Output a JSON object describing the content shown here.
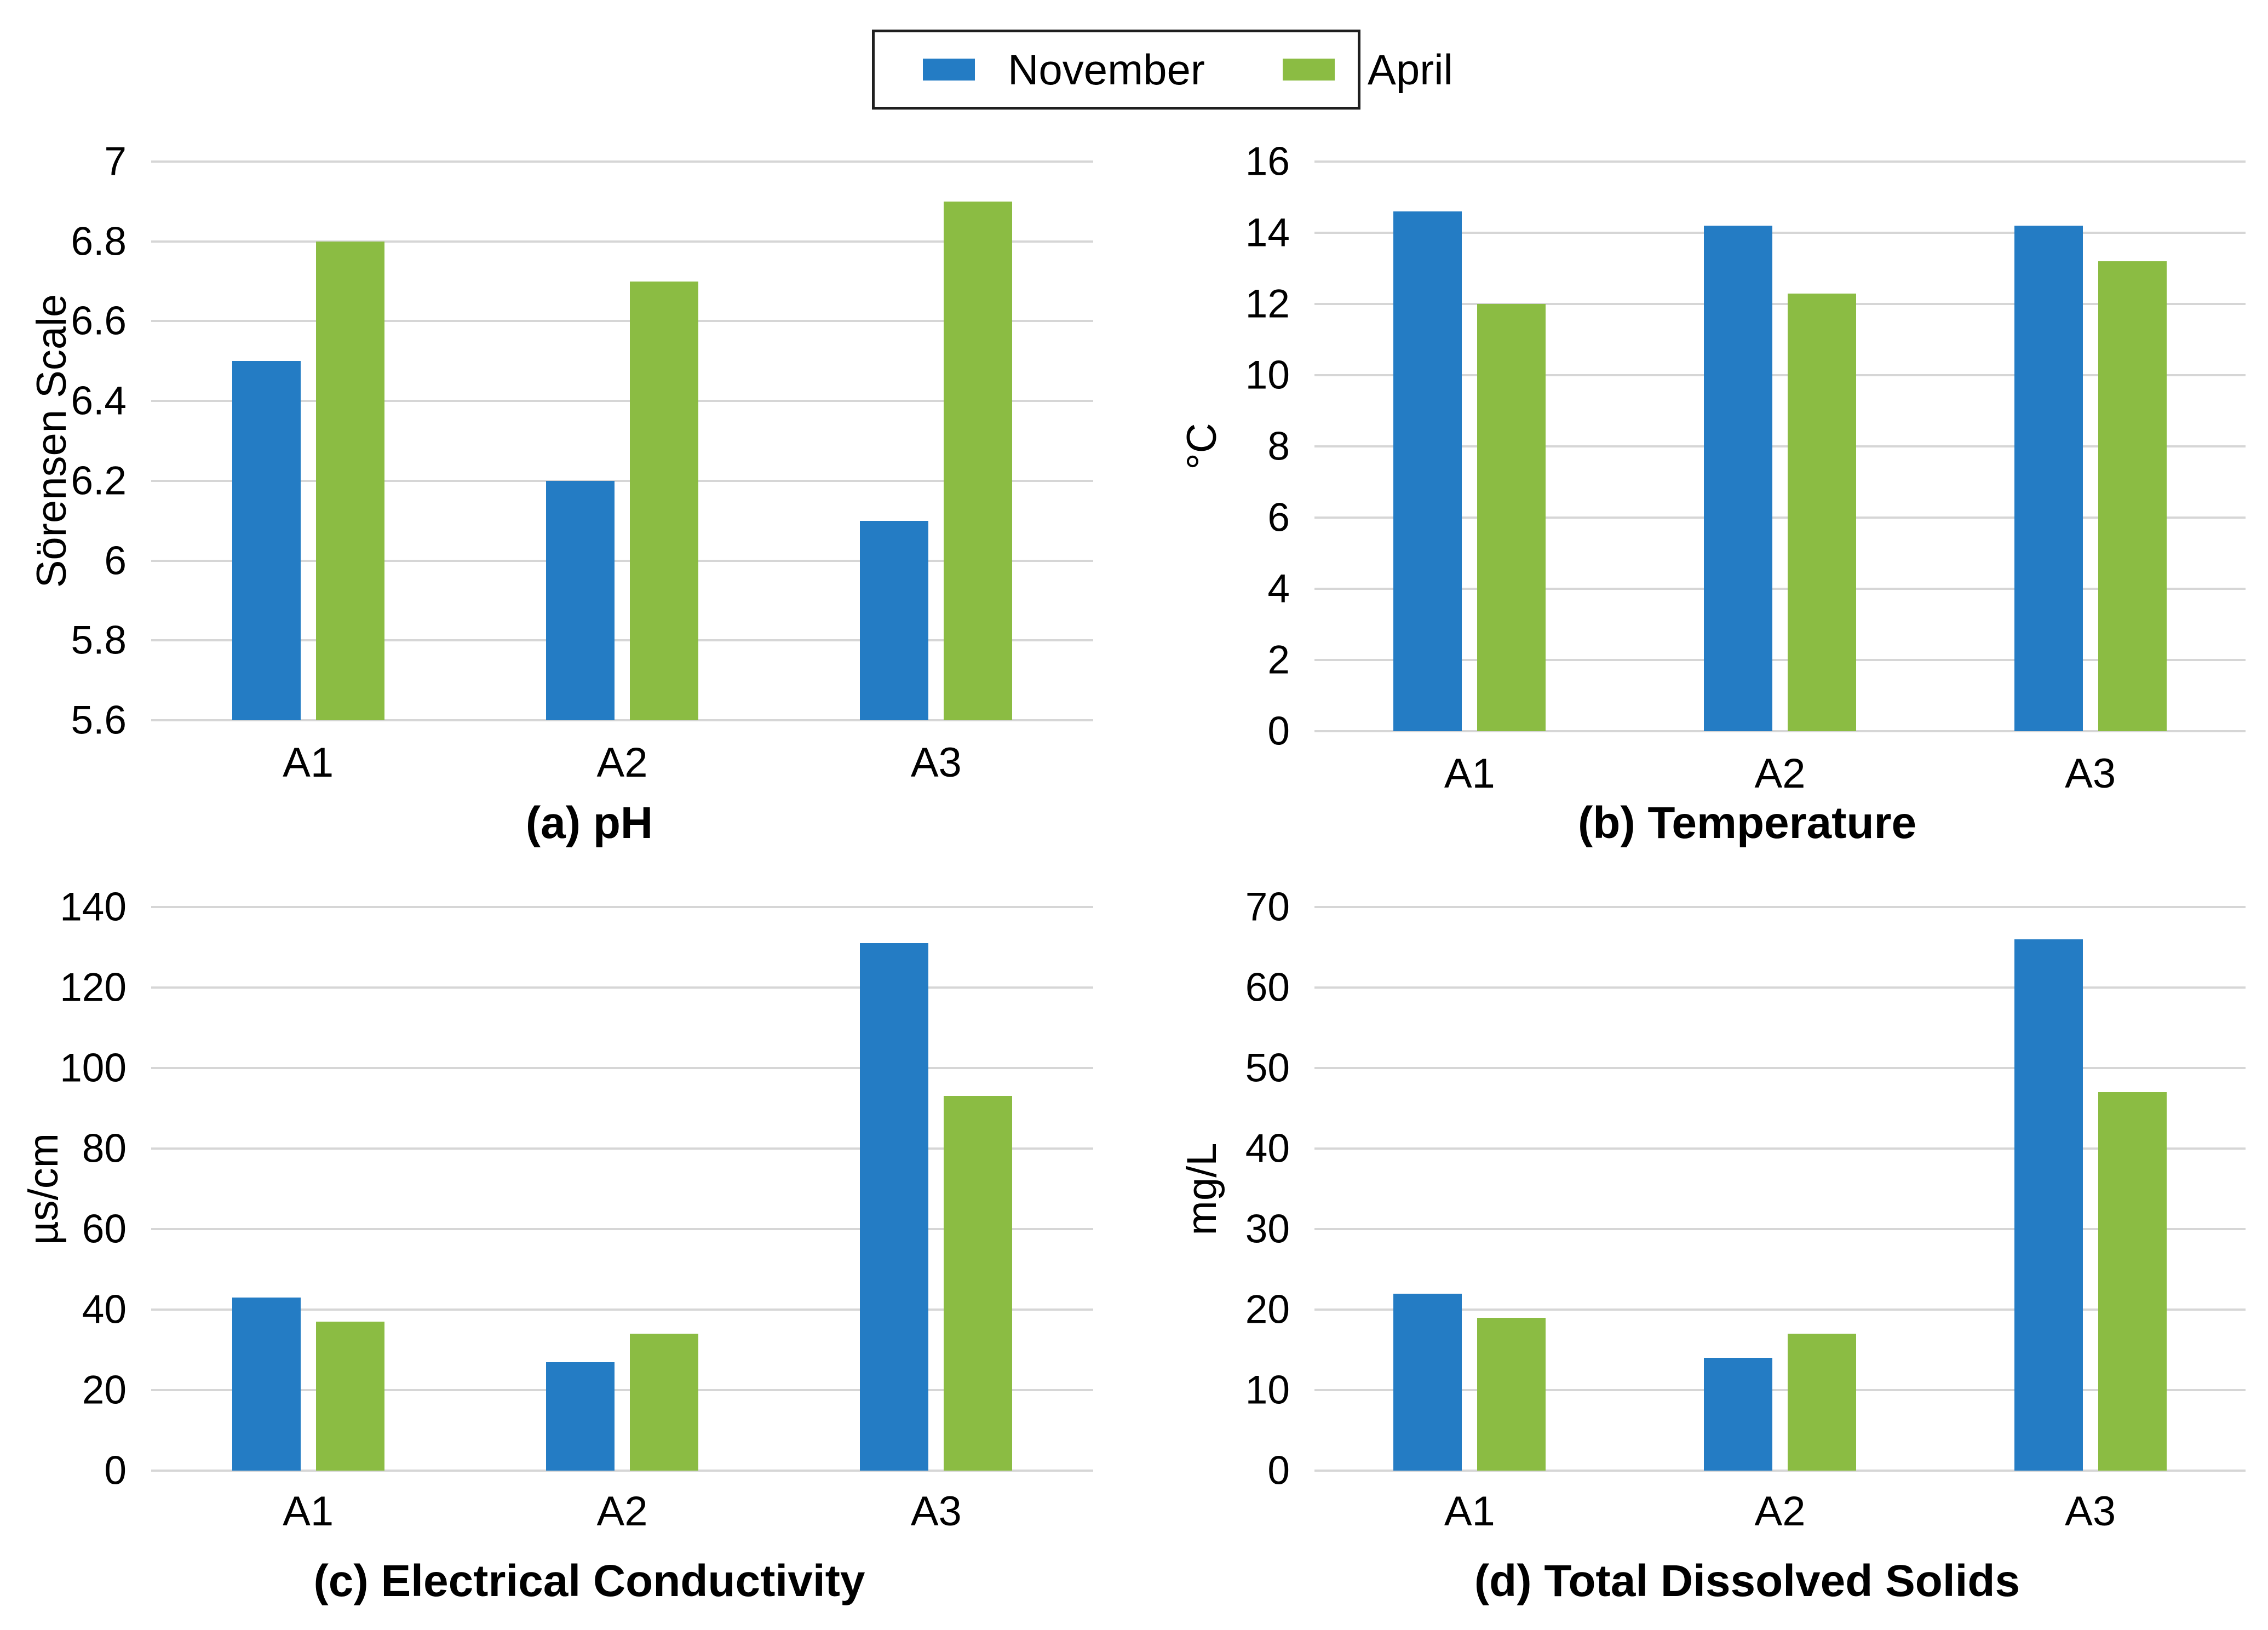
{
  "figure": {
    "background": "#ffffff",
    "gridline_color": "#d6d6d6",
    "text_color": "#000000"
  },
  "legend": {
    "items": [
      {
        "label": "November",
        "color": "#247CC4"
      },
      {
        "label": "April",
        "color": "#8BBC43"
      }
    ]
  },
  "chart_data": [
    {
      "type": "bar",
      "panel": "a",
      "title": "(a) pH",
      "ylabel": "Sörensen Scale",
      "xlabel": "",
      "categories": [
        "A1",
        "A2",
        "A3"
      ],
      "series": [
        {
          "name": "November",
          "color": "#247CC4",
          "values": [
            6.5,
            6.2,
            6.1
          ]
        },
        {
          "name": "April",
          "color": "#8BBC43",
          "values": [
            6.8,
            6.7,
            6.9
          ]
        }
      ],
      "ylim": [
        5.6,
        7.0
      ],
      "ytick_labels": [
        "7",
        "6.8",
        "6.6",
        "6.4",
        "6.2",
        "6",
        "5.8",
        "5.6"
      ],
      "grid": true,
      "legend_position": "top-center"
    },
    {
      "type": "bar",
      "panel": "b",
      "title": "(b) Temperature",
      "ylabel": "°C",
      "xlabel": "",
      "categories": [
        "A1",
        "A2",
        "A3"
      ],
      "series": [
        {
          "name": "November",
          "color": "#247CC4",
          "values": [
            14.6,
            14.2,
            14.2
          ]
        },
        {
          "name": "April",
          "color": "#8BBC43",
          "values": [
            12.0,
            12.3,
            13.2
          ]
        }
      ],
      "ylim": [
        0,
        16
      ],
      "ytick_labels": [
        "16",
        "14",
        "12",
        "10",
        "8",
        "6",
        "4",
        "2",
        "0"
      ],
      "grid": true,
      "legend_position": "top-center"
    },
    {
      "type": "bar",
      "panel": "c",
      "title": "(c) Electrical Conductivity",
      "ylabel": "µs/cm",
      "xlabel": "",
      "categories": [
        "A1",
        "A2",
        "A3"
      ],
      "series": [
        {
          "name": "November",
          "color": "#247CC4",
          "values": [
            43,
            27,
            131
          ]
        },
        {
          "name": "April",
          "color": "#8BBC43",
          "values": [
            37,
            34,
            93
          ]
        }
      ],
      "ylim": [
        0,
        140
      ],
      "ytick_labels": [
        "140",
        "120",
        "100",
        "80",
        "60",
        "40",
        "20",
        "0"
      ],
      "grid": true,
      "legend_position": "top-center"
    },
    {
      "type": "bar",
      "panel": "d",
      "title": "(d) Total Dissolved Solids",
      "ylabel": "mg/L",
      "xlabel": "",
      "categories": [
        "A1",
        "A2",
        "A3"
      ],
      "series": [
        {
          "name": "November",
          "color": "#247CC4",
          "values": [
            22,
            14,
            66
          ]
        },
        {
          "name": "April",
          "color": "#8BBC43",
          "values": [
            19,
            17,
            47
          ]
        }
      ],
      "ylim": [
        0,
        70
      ],
      "ytick_labels": [
        "70",
        "60",
        "50",
        "40",
        "30",
        "20",
        "10",
        "0"
      ],
      "grid": true,
      "legend_position": "top-center"
    }
  ]
}
